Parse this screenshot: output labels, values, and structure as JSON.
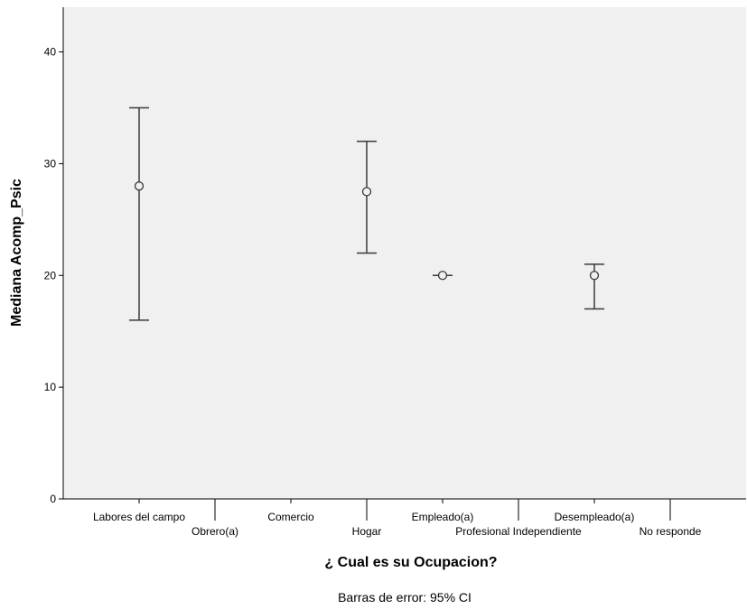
{
  "chart_data": {
    "type": "error-bar",
    "xlabel": "¿ Cual es su Ocupacion?",
    "ylabel": "Mediana Acomp_Psic",
    "ylim": [
      0,
      44
    ],
    "yticks": [
      0,
      10,
      20,
      30,
      40
    ],
    "grid": false,
    "note": "Barras de error: 95% CI",
    "background_color": "#f0f0f0",
    "marker_color": "#3a3a3a",
    "categories": [
      "Labores del campo",
      "Obrero(a)",
      "Comercio",
      "Hogar",
      "Empleado(a)",
      "Profesional Independiente",
      "Desempleado(a)",
      "No responde"
    ],
    "points": [
      {
        "category": "Labores del campo",
        "median": 28,
        "ci_low": 16,
        "ci_high": 35
      },
      {
        "category": "Hogar",
        "median": 27.5,
        "ci_low": 22,
        "ci_high": 32
      },
      {
        "category": "Empleado(a)",
        "median": 20,
        "ci_low": 20,
        "ci_high": 20
      },
      {
        "category": "Desempleado(a)",
        "median": 20,
        "ci_low": 17,
        "ci_high": 21
      }
    ]
  }
}
